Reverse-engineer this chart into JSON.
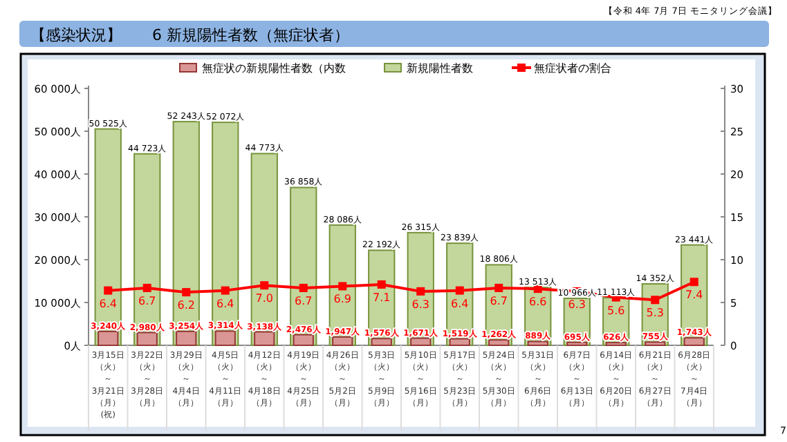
{
  "chart_data": {
    "type": "bar",
    "title": "【感染状況】　　6 新規陽性者数（無症状者）",
    "categories": [
      "3月15日（火）～3月21日（月）(祝)",
      "3月22日（火）～3月28日（月）",
      "3月29日（火）～4月4日（月）",
      "4月5日（火）～4月11日（月）",
      "4月12日（火）～4月18日（月）",
      "4月19日（火）～4月25日（月）",
      "4月26日（火）～5月2日（月）",
      "5月3日（火）～5月9日（月）",
      "5月10日（火）～5月16日（月）",
      "5月17日（火）～5月23日（月）",
      "5月24日（火）～5月30日（月）",
      "5月31日（火）～6月6日（月）",
      "6月7日（火）～6月13日（月）",
      "6月14日（火）～6月20日（月）",
      "6月21日（火）～6月27日（月）",
      "6月28日（火）～7月4日（月）"
    ],
    "series": [
      {
        "name": "無症状の新規陽性者数（内数",
        "color": "#d99694",
        "values": [
          3240,
          2980,
          3254,
          3314,
          3138,
          2476,
          1947,
          1576,
          1671,
          1519,
          1262,
          889,
          695,
          626,
          755,
          1743
        ],
        "value_labels": [
          "3,240人",
          "2,980人",
          "3,254人",
          "3,314人",
          "3,138人",
          "2,476人",
          "1,947人",
          "1,576人",
          "1,671人",
          "1,519人",
          "1,262人",
          "889人",
          "695人",
          "626人",
          "755人",
          "1,743人"
        ]
      },
      {
        "name": "新規陽性者数",
        "color": "#c3d69b",
        "values": [
          50525,
          44723,
          52243,
          52072,
          44773,
          36858,
          28086,
          22192,
          26315,
          23839,
          18806,
          13513,
          10966,
          11113,
          14352,
          23441
        ],
        "value_labels": [
          "50 525人",
          "44 723人",
          "52 243人",
          "52 072人",
          "44 773人",
          "36 858人",
          "28 086人",
          "22 192人",
          "26 315人",
          "23 839人",
          "18 806人",
          "13 513人",
          "10 966人",
          "11 113人",
          "14 352人",
          "23 441人"
        ]
      },
      {
        "name": "無症状者の割合",
        "type": "line",
        "axis": "y2",
        "color": "#ff0000",
        "marker": "square",
        "line_style": "solid",
        "values": [
          6.4,
          6.7,
          6.2,
          6.4,
          7.0,
          6.7,
          6.9,
          7.1,
          6.3,
          6.4,
          6.7,
          6.6,
          6.3,
          5.6,
          5.3,
          7.4
        ],
        "value_labels": [
          "6.4",
          "6.7",
          "6.2",
          "6.4",
          "7.0",
          "6.7",
          "6.9",
          "7.1",
          "6.3",
          "6.4",
          "6.7",
          "6.6",
          "6.3",
          "5.6",
          "5.3",
          "7.4"
        ]
      }
    ],
    "ylim": [
      0,
      60000
    ],
    "yticks": [
      {
        "value": 0,
        "label": "0人"
      },
      {
        "value": 10000,
        "label": "10 000人"
      },
      {
        "value": 20000,
        "label": "20 000人"
      },
      {
        "value": 30000,
        "label": "30 000人"
      },
      {
        "value": 40000,
        "label": "40 000人"
      },
      {
        "value": 50000,
        "label": "50 000人"
      },
      {
        "value": 60000,
        "label": "60 000人"
      }
    ],
    "y2lim": [
      0,
      30
    ],
    "y2ticks": [
      0,
      5,
      10,
      15,
      20,
      25,
      30
    ],
    "legend": "top",
    "grid": false,
    "annotations": [
      "【令和 4年 7月 7日 モニタリング会議】",
      "7"
    ]
  }
}
